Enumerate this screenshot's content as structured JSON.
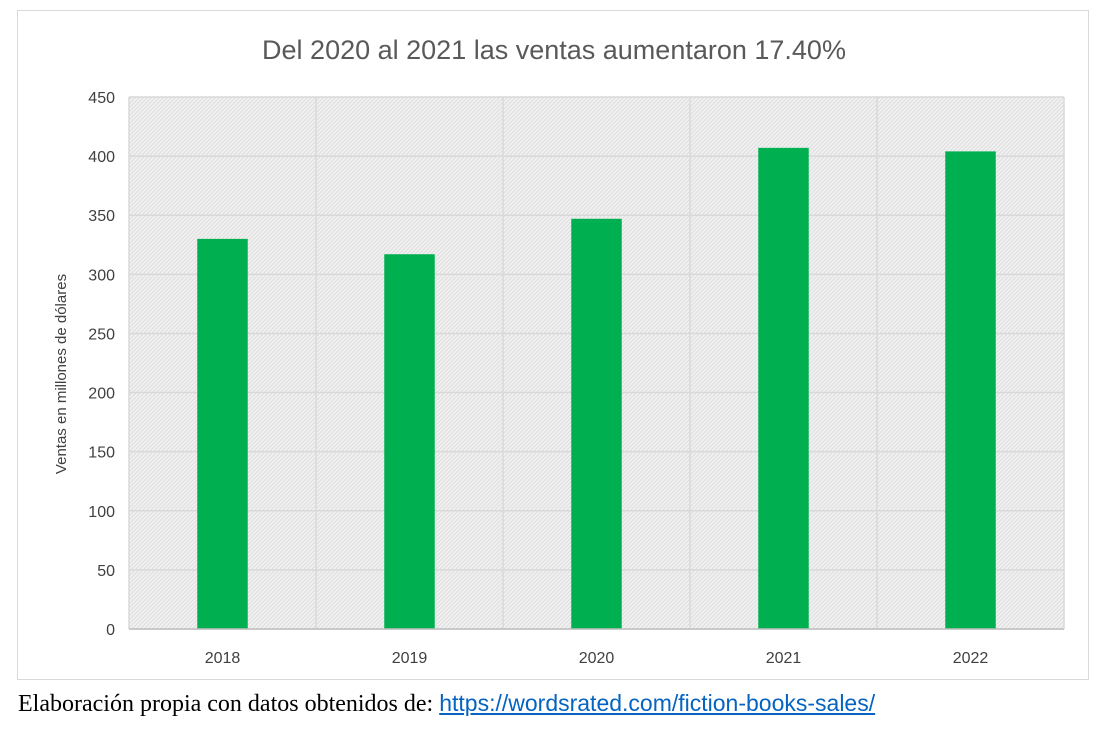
{
  "chart_data": {
    "type": "bar",
    "title": "Del 2020 al 2021 las ventas aumentaron  17.40%",
    "xlabel": "",
    "ylabel": "Ventas en millones de dólares",
    "categories": [
      "2018",
      "2019",
      "2020",
      "2021",
      "2022"
    ],
    "series": [
      {
        "values": [
          330,
          317,
          347,
          407,
          404
        ]
      }
    ],
    "ylim": [
      0,
      450
    ],
    "yticks": [
      0,
      50,
      100,
      150,
      200,
      250,
      300,
      350,
      400,
      450
    ],
    "grid": true,
    "legend": "none",
    "colors": {
      "bar": "#00b050",
      "grid": "#d9d9d9",
      "text": "#595959"
    }
  },
  "caption": {
    "text": "Elaboración propia con datos obtenidos de: ",
    "link": "https://wordsrated.com/fiction-books-sales/"
  }
}
